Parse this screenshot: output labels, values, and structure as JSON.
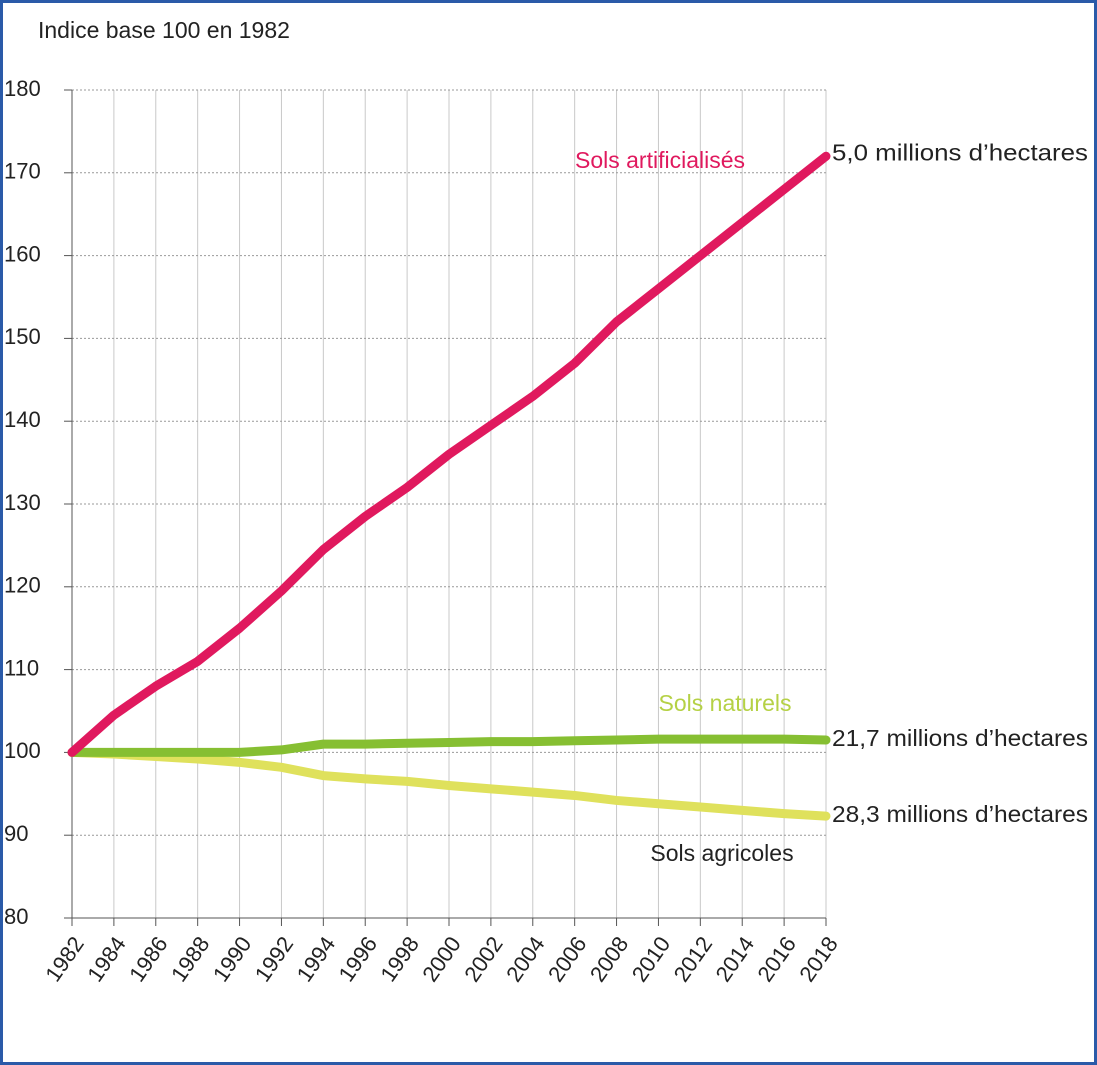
{
  "chart_data": {
    "type": "line",
    "title": "Indice base 100 en 1982",
    "x": [
      1982,
      1984,
      1986,
      1988,
      1990,
      1992,
      1994,
      1996,
      1998,
      2000,
      2002,
      2004,
      2006,
      2008,
      2010,
      2012,
      2014,
      2016,
      2018
    ],
    "series": [
      {
        "name": "Sols artificialisés",
        "color": "#e0195e",
        "end_label": "5,0 millions d’hectares",
        "values": [
          100,
          104.5,
          108,
          111,
          115,
          119.5,
          124.5,
          128.5,
          132,
          136,
          139.5,
          143,
          147,
          152,
          156,
          160,
          164,
          168,
          172
        ]
      },
      {
        "name": "Sols naturels",
        "color": "#86bf32",
        "end_label": "21,7 millions d’hectares",
        "values": [
          100,
          100,
          100,
          100,
          100,
          100.3,
          101,
          101,
          101.1,
          101.2,
          101.3,
          101.3,
          101.4,
          101.5,
          101.6,
          101.6,
          101.6,
          101.6,
          101.5
        ]
      },
      {
        "name": "Sols agricoles",
        "color": "#dfe15c",
        "end_label": "28,3 millions d’hectares",
        "values": [
          100,
          99.8,
          99.5,
          99.2,
          98.8,
          98.2,
          97.2,
          96.8,
          96.5,
          96,
          95.6,
          95.2,
          94.8,
          94.2,
          93.8,
          93.4,
          93,
          92.6,
          92.3
        ]
      }
    ],
    "xlim": [
      1982,
      2018
    ],
    "xticks": [
      1982,
      1984,
      1986,
      1988,
      1990,
      1992,
      1994,
      1996,
      1998,
      2000,
      2002,
      2004,
      2006,
      2008,
      2010,
      2012,
      2014,
      2016,
      2018
    ],
    "ylim": [
      80,
      180
    ],
    "yticks": [
      80,
      90,
      100,
      110,
      120,
      130,
      140,
      150,
      160,
      170,
      180
    ],
    "grid": true
  }
}
